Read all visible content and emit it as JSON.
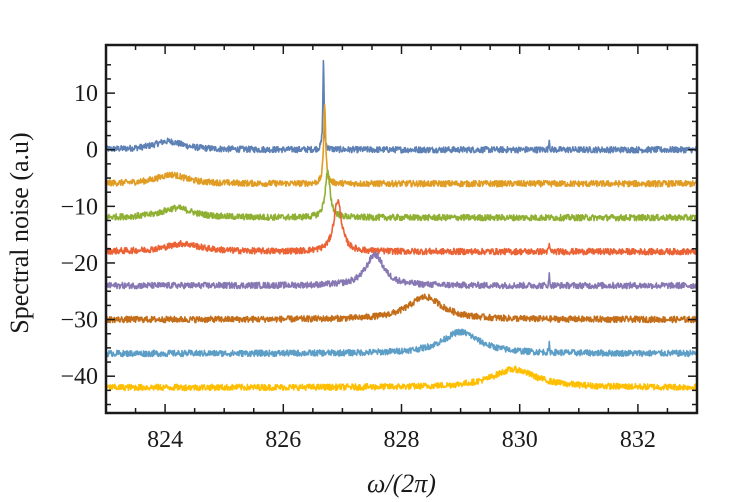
{
  "chart_data": {
    "type": "line",
    "title": "",
    "xlabel": "ω/(2π)",
    "ylabel": "Spectral noise (a.u)",
    "xlim": [
      823,
      833
    ],
    "ylim": [
      -46.5,
      18.5
    ],
    "xticks": [
      824,
      826,
      828,
      830,
      832
    ],
    "xtick_labels": [
      "824",
      "826",
      "828",
      "830",
      "832"
    ],
    "yticks": [
      10,
      0,
      -10,
      -20,
      -30,
      -40
    ],
    "ytick_labels": [
      "10",
      "0",
      "−10",
      "−20",
      "−30",
      "−40"
    ],
    "grid": false,
    "legend": "none",
    "series": [
      {
        "offset": 0,
        "color": "#5e81b5",
        "peaks": [
          {
            "x": 824.05,
            "amp": 1.5,
            "width": 0.3
          },
          {
            "x": 826.68,
            "amp": 16.0,
            "width": 0.012
          },
          {
            "x": 830.5,
            "amp": 2.2,
            "width": 0.006
          }
        ]
      },
      {
        "offset": -6,
        "color": "#e19c24",
        "peaks": [
          {
            "x": 824.1,
            "amp": 1.6,
            "width": 0.3
          },
          {
            "x": 826.7,
            "amp": 14.0,
            "width": 0.02
          }
        ]
      },
      {
        "offset": -12,
        "color": "#8fb032",
        "peaks": [
          {
            "x": 824.2,
            "amp": 1.7,
            "width": 0.32
          },
          {
            "x": 826.75,
            "amp": 8.0,
            "width": 0.05
          }
        ]
      },
      {
        "offset": -18,
        "color": "#eb6235",
        "peaks": [
          {
            "x": 824.3,
            "amp": 1.4,
            "width": 0.35
          },
          {
            "x": 826.92,
            "amp": 9.0,
            "width": 0.08
          },
          {
            "x": 830.5,
            "amp": 1.6,
            "width": 0.006
          }
        ]
      },
      {
        "offset": -24,
        "color": "#8778b3",
        "peaks": [
          {
            "x": 827.55,
            "amp": 5.5,
            "width": 0.18
          },
          {
            "x": 830.5,
            "amp": 2.0,
            "width": 0.006
          }
        ]
      },
      {
        "offset": -30,
        "color": "#c56e1a",
        "peaks": [
          {
            "x": 828.4,
            "amp": 4.0,
            "width": 0.35
          }
        ]
      },
      {
        "offset": -36,
        "color": "#5d9ec7",
        "peaks": [
          {
            "x": 829.0,
            "amp": 3.8,
            "width": 0.38
          },
          {
            "x": 830.5,
            "amp": 1.4,
            "width": 0.006
          }
        ]
      },
      {
        "offset": -42,
        "color": "#ffbf00",
        "peaks": [
          {
            "x": 829.9,
            "amp": 3.2,
            "width": 0.45
          }
        ]
      }
    ]
  }
}
